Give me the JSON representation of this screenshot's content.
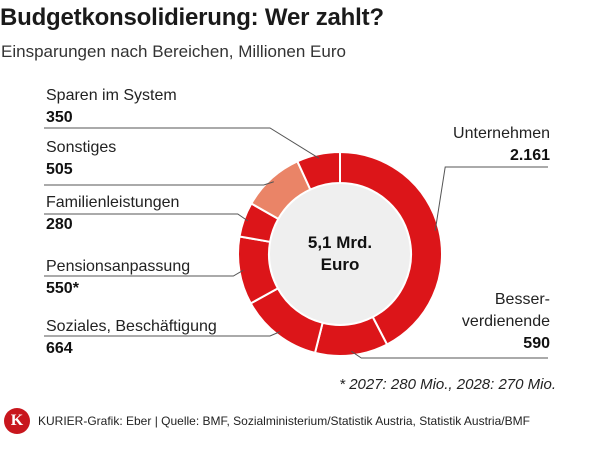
{
  "header": {
    "title": "Budgetkonsolidierung: Wer zahlt?",
    "subtitle": "Einsparungen nach Bereichen, Millionen Euro"
  },
  "chart_data": {
    "type": "pie",
    "variant": "donut",
    "center_label": [
      "5,1 Mrd.",
      "Euro"
    ],
    "colors": {
      "primary": "#dc1519",
      "highlight": "#ea8467",
      "center": "#efefef"
    },
    "slices": [
      {
        "name": "Unternehmen",
        "name_lines": [
          "Unternehmen"
        ],
        "value": 2161,
        "display": "2.161",
        "color": "#dc1519"
      },
      {
        "name": "Besserverdienende",
        "name_lines": [
          "Besser-",
          "verdienende"
        ],
        "value": 590,
        "display": "590",
        "color": "#dc1519"
      },
      {
        "name": "Soziales, Beschäftigung",
        "name_lines": [
          "Soziales, Beschäftigung"
        ],
        "value": 664,
        "display": "664",
        "color": "#dc1519"
      },
      {
        "name": "Pensionsanpassung",
        "name_lines": [
          "Pensionsanpassung"
        ],
        "value": 550,
        "display": "550*",
        "color": "#dc1519"
      },
      {
        "name": "Familienleistungen",
        "name_lines": [
          "Familienleistungen"
        ],
        "value": 280,
        "display": "280",
        "color": "#dc1519"
      },
      {
        "name": "Sonstiges",
        "name_lines": [
          "Sonstiges"
        ],
        "value": 505,
        "display": "505",
        "color": "#ea8467"
      },
      {
        "name": "Sparen im System",
        "name_lines": [
          "Sparen im System"
        ],
        "value": 350,
        "display": "350",
        "color": "#dc1519"
      }
    ]
  },
  "footnote": "* 2027: 280 Mio., 2028: 270 Mio.",
  "footer": {
    "logo_letter": "K",
    "credit": "KURIER-Grafik: Eber | Quelle: BMF, Sozialministerium/Statistik Austria, Statistik Austria/BMF"
  }
}
